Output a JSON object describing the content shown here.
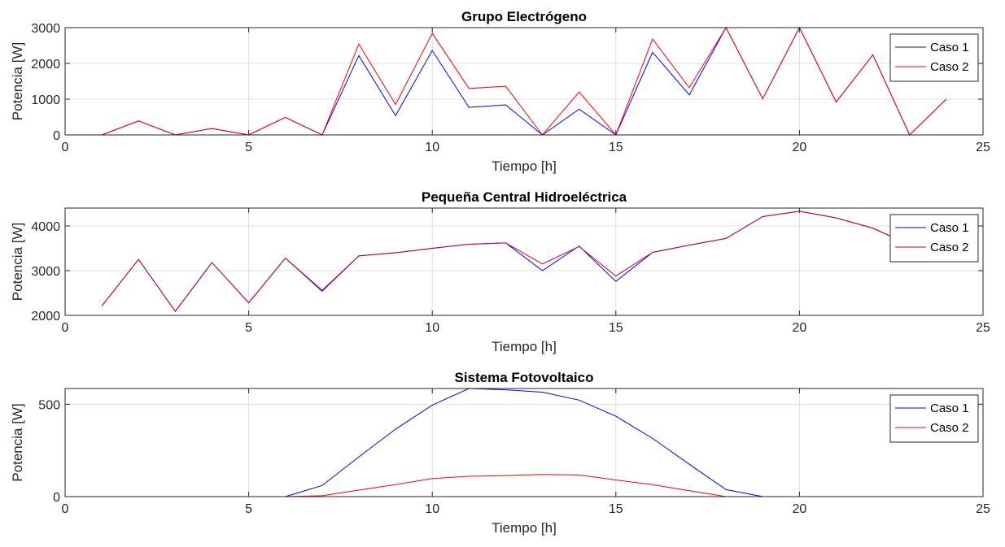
{
  "chart_data": [
    {
      "type": "line",
      "title": "Grupo Electrógeno",
      "xlabel": "Tiempo [h]",
      "ylabel": "Potencia [W]",
      "xlim": [
        0,
        25
      ],
      "ylim": [
        0,
        3000
      ],
      "xticks": [
        0,
        5,
        10,
        15,
        20,
        25
      ],
      "yticks": [
        0,
        1000,
        2000,
        3000
      ],
      "grid": true,
      "legend_position": "top-right",
      "x": [
        1,
        2,
        3,
        4,
        5,
        6,
        7,
        8,
        9,
        10,
        11,
        12,
        13,
        14,
        15,
        16,
        17,
        18,
        19,
        20,
        21,
        22,
        23,
        24
      ],
      "series": [
        {
          "name": "Caso 1",
          "color": "#0000ff",
          "values": [
            0,
            390,
            0,
            180,
            0,
            490,
            0,
            2220,
            540,
            2360,
            770,
            840,
            0,
            720,
            0,
            2310,
            1120,
            3000,
            1010,
            3000,
            920,
            2240,
            0,
            1000
          ]
        },
        {
          "name": "Caso 2",
          "color": "#ff0000",
          "values": [
            0,
            390,
            0,
            180,
            0,
            490,
            0,
            2540,
            850,
            2840,
            1300,
            1360,
            0,
            1200,
            0,
            2680,
            1320,
            3000,
            1010,
            3000,
            920,
            2240,
            0,
            1000
          ]
        }
      ]
    },
    {
      "type": "line",
      "title": "Pequeña Central Hidroeléctrica",
      "xlabel": "Tiempo [h]",
      "ylabel": "Potencia [W]",
      "xlim": [
        0,
        25
      ],
      "ylim": [
        2000,
        4400
      ],
      "xticks": [
        0,
        5,
        10,
        15,
        20,
        25
      ],
      "yticks": [
        2000,
        3000,
        4000
      ],
      "grid": true,
      "legend_position": "top-right",
      "x": [
        1,
        2,
        3,
        4,
        5,
        6,
        7,
        8,
        9,
        10,
        11,
        12,
        13,
        14,
        15,
        16,
        17,
        18,
        19,
        20,
        21,
        22,
        23,
        24
      ],
      "series": [
        {
          "name": "Caso 1",
          "color": "#0000ff",
          "values": [
            2210,
            3250,
            2090,
            3180,
            2280,
            3280,
            2540,
            3330,
            3400,
            3500,
            3590,
            3620,
            3000,
            3550,
            2760,
            3410,
            3570,
            3720,
            4210,
            4330,
            4180,
            3950,
            3580,
            3350
          ]
        },
        {
          "name": "Caso 2",
          "color": "#c8003a",
          "values": [
            2210,
            3250,
            2090,
            3180,
            2280,
            3280,
            2560,
            3330,
            3400,
            3500,
            3590,
            3620,
            3150,
            3540,
            2880,
            3410,
            3570,
            3720,
            4210,
            4330,
            4180,
            3950,
            3580,
            3350
          ]
        }
      ]
    },
    {
      "type": "line",
      "title": "Sistema Fotovoltaico",
      "xlabel": "Tiempo [h]",
      "ylabel": "Potencia [W]",
      "xlim": [
        0,
        25
      ],
      "ylim": [
        0,
        585
      ],
      "xticks": [
        0,
        5,
        10,
        15,
        20,
        25
      ],
      "yticks": [
        0,
        500
      ],
      "grid": true,
      "legend_position": "top-right",
      "x": [
        1,
        2,
        3,
        4,
        5,
        6,
        7,
        8,
        9,
        10,
        11,
        12,
        13,
        14,
        15,
        16,
        17,
        18,
        19,
        20,
        21,
        22,
        23,
        24
      ],
      "series": [
        {
          "name": "Caso 1",
          "color": "#0000ff",
          "values": [
            0,
            0,
            0,
            0,
            0,
            0,
            60,
            215,
            365,
            495,
            585,
            578,
            565,
            522,
            435,
            315,
            175,
            38,
            0,
            0,
            0,
            0,
            0,
            0
          ]
        },
        {
          "name": "Caso 2",
          "color": "#ff0000",
          "values": [
            0,
            0,
            0,
            0,
            0,
            0,
            5,
            35,
            65,
            98,
            110,
            114,
            120,
            117,
            90,
            65,
            32,
            0,
            0,
            0,
            0,
            0,
            0,
            0
          ]
        }
      ]
    }
  ]
}
